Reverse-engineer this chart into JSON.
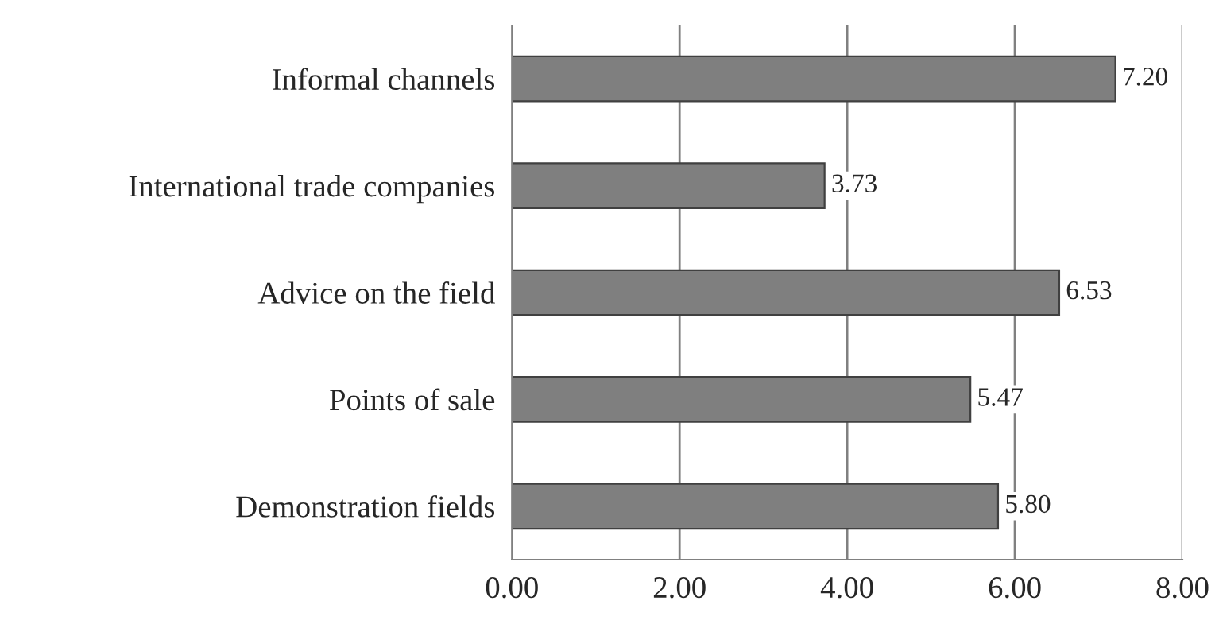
{
  "chart_data": {
    "type": "bar",
    "orientation": "horizontal",
    "categories": [
      "Informal channels",
      "International trade companies",
      "Advice on the field",
      "Points of sale",
      "Demonstration fields"
    ],
    "values": [
      7.2,
      3.73,
      6.53,
      5.47,
      5.8
    ],
    "value_labels": [
      "7.20",
      "3.73",
      "6.53",
      "5.47",
      "5.80"
    ],
    "color": "#7f7f7f",
    "xlim": [
      0,
      8
    ],
    "xticks": [
      {
        "value": 0,
        "label": "0.00"
      },
      {
        "value": 2,
        "label": "2.00"
      },
      {
        "value": 4,
        "label": "4.00"
      },
      {
        "value": 6,
        "label": "6.00"
      },
      {
        "value": 8,
        "label": "8.00"
      }
    ],
    "grid": "x"
  }
}
